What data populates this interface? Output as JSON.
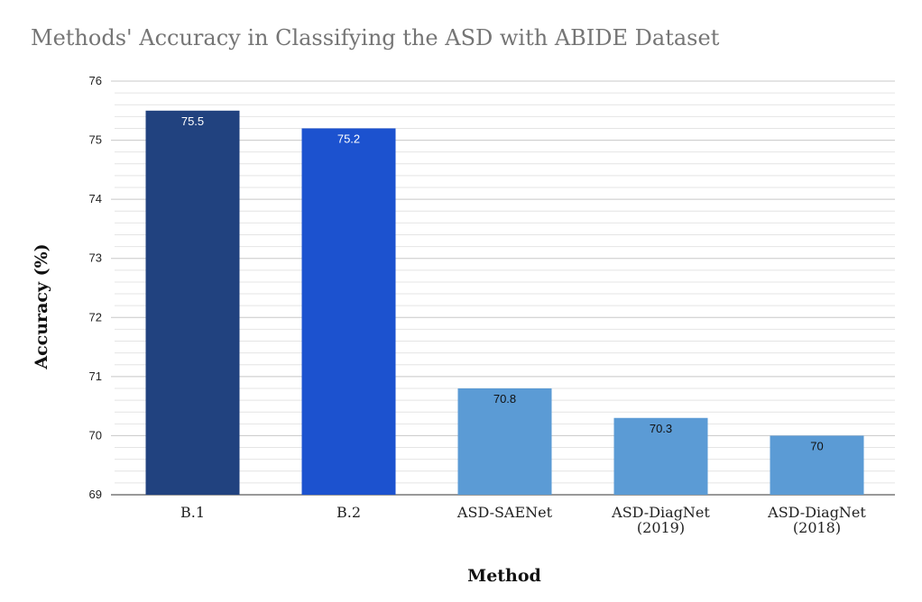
{
  "chart_data": {
    "type": "bar",
    "title": "Methods' Accuracy in Classifying the ASD with ABIDE Dataset",
    "xlabel": "Method",
    "ylabel": "Accuracy (%)",
    "categories": [
      [
        "B.1"
      ],
      [
        "B.2"
      ],
      [
        "ASD-SAENet"
      ],
      [
        "ASD-DiagNet",
        "(2019)"
      ],
      [
        "ASD-DiagNet",
        "(2018)"
      ]
    ],
    "values": [
      75.5,
      75.2,
      70.8,
      70.3,
      70
    ],
    "data_labels": [
      "75.5",
      "75.2",
      "70.8",
      "70.3",
      "70"
    ],
    "bar_colors": [
      "#21427f",
      "#1c52cf",
      "#5b9bd5",
      "#5b9bd5",
      "#5b9bd5"
    ],
    "label_colors": [
      "#ffffff",
      "#ffffff",
      "#111111",
      "#111111",
      "#111111"
    ],
    "ylim": [
      69,
      76
    ],
    "yticks": [
      "69",
      "70",
      "71",
      "72",
      "73",
      "74",
      "75",
      "76"
    ],
    "minor_gridlines_per_major": 5,
    "grid": true,
    "legend": "none"
  }
}
